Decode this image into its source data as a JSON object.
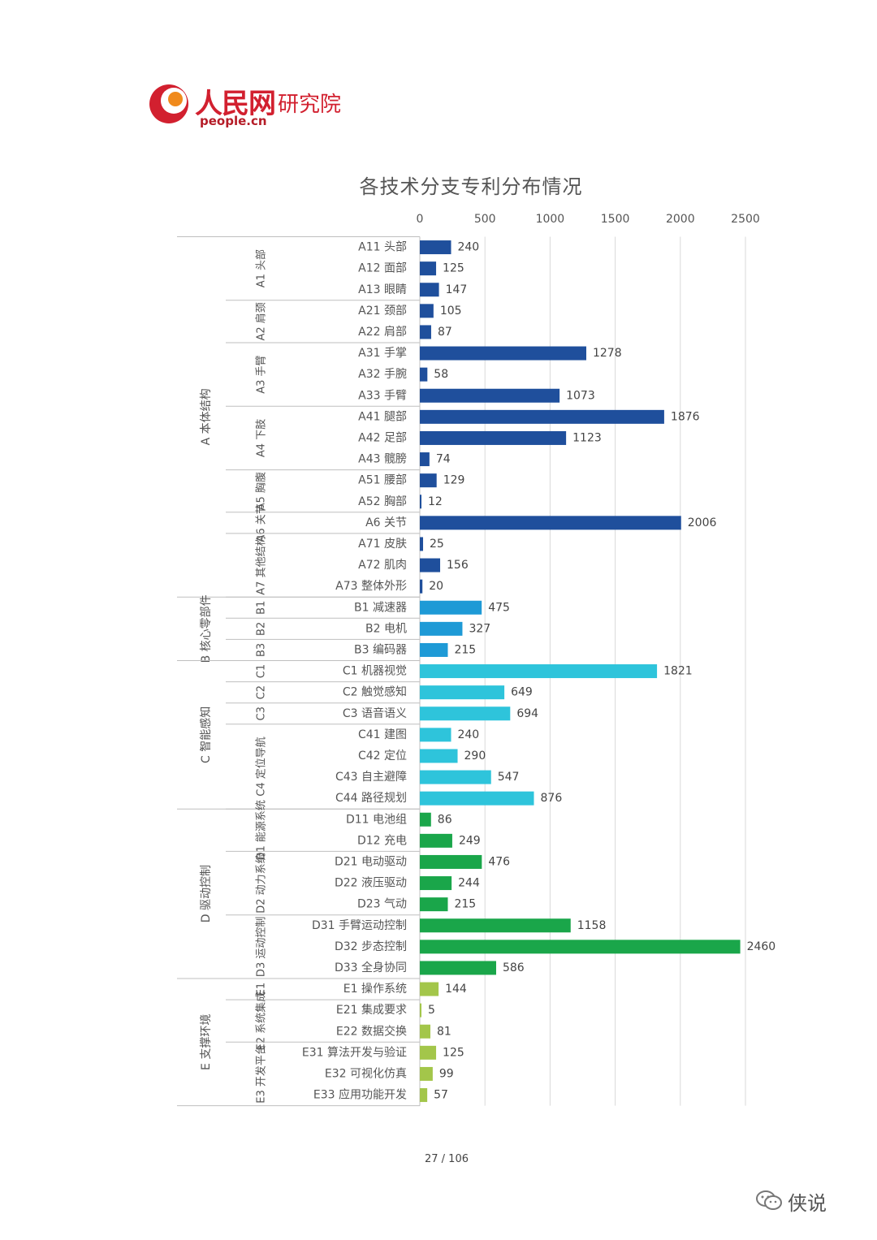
{
  "header": {
    "logo_text": "人民网",
    "logo_suffix": "研究院",
    "logo_url": "people.cn"
  },
  "footer": {
    "page_number": "27  /  106",
    "watermark": "侠说"
  },
  "colors": {
    "A": "#1f4f9c",
    "B": "#1e9ad6",
    "C": "#2ec4db",
    "D": "#1aa64a",
    "E": "#a3c64a",
    "brand": "#d2202f"
  },
  "chart_data": {
    "type": "bar",
    "orientation": "horizontal",
    "title": "各技术分支专利分布情况",
    "xlim": [
      0,
      2500
    ],
    "xticks": [
      0,
      500,
      1000,
      1500,
      2000,
      2500
    ],
    "grid": true,
    "categories": [
      "A11 头部",
      "A12 面部",
      "A13 眼睛",
      "A21 颈部",
      "A22 肩部",
      "A31 手掌",
      "A32 手腕",
      "A33 手臂",
      "A41 腿部",
      "A42 足部",
      "A43 髋膀",
      "A51 腰部",
      "A52 胸部",
      "A6 关节",
      "A71 皮肤",
      "A72 肌肉",
      "A73 整体外形",
      "B1 减速器",
      "B2 电机",
      "B3 编码器",
      "C1 机器视觉",
      "C2 触觉感知",
      "C3 语音语义",
      "C41 建图",
      "C42 定位",
      "C43 自主避障",
      "C44 路径规划",
      "D11 电池组",
      "D12 充电",
      "D21 电动驱动",
      "D22 液压驱动",
      "D23 气动",
      "D31 手臂运动控制",
      "D32 步态控制",
      "D33 全身协同",
      "E1 操作系统",
      "E21 集成要求",
      "E22 数据交换",
      "E31 算法开发与验证",
      "E32 可视化仿真",
      "E33 应用功能开发"
    ],
    "values": [
      240,
      125,
      147,
      105,
      87,
      1278,
      58,
      1073,
      1876,
      1123,
      74,
      129,
      12,
      2006,
      25,
      156,
      20,
      475,
      327,
      215,
      1821,
      649,
      694,
      240,
      290,
      547,
      876,
      86,
      249,
      476,
      244,
      215,
      1158,
      2460,
      586,
      144,
      5,
      81,
      125,
      99,
      57
    ],
    "groups": [
      {
        "key": "A",
        "label": "A 本体结构",
        "start": 0,
        "end": 16
      },
      {
        "key": "B",
        "label": "B 核心零部件",
        "start": 17,
        "end": 19
      },
      {
        "key": "C",
        "label": "C 智能感知",
        "start": 20,
        "end": 26
      },
      {
        "key": "D",
        "label": "D 驱动控制",
        "start": 27,
        "end": 34
      },
      {
        "key": "E",
        "label": "E 支撑环境",
        "start": 35,
        "end": 40
      }
    ],
    "subgroups": [
      {
        "label": "A1 头部",
        "start": 0,
        "end": 2
      },
      {
        "label": "A2 肩颈",
        "start": 3,
        "end": 4
      },
      {
        "label": "A3 手臂",
        "start": 5,
        "end": 7
      },
      {
        "label": "A4 下肢",
        "start": 8,
        "end": 10
      },
      {
        "label": "A5 胸腹",
        "start": 11,
        "end": 12
      },
      {
        "label": "A6 关节",
        "start": 13,
        "end": 13
      },
      {
        "label": "A7 其他结构",
        "start": 14,
        "end": 16
      },
      {
        "label": "B1",
        "start": 17,
        "end": 17
      },
      {
        "label": "B2",
        "start": 18,
        "end": 18
      },
      {
        "label": "B3",
        "start": 19,
        "end": 19
      },
      {
        "label": "C1",
        "start": 20,
        "end": 20
      },
      {
        "label": "C2",
        "start": 21,
        "end": 21
      },
      {
        "label": "C3",
        "start": 22,
        "end": 22
      },
      {
        "label": "C4 定位导航",
        "start": 23,
        "end": 26
      },
      {
        "label": "D1 能源系统",
        "start": 27,
        "end": 28
      },
      {
        "label": "D2 动力系统",
        "start": 29,
        "end": 31
      },
      {
        "label": "D3 运动控制",
        "start": 32,
        "end": 34
      },
      {
        "label": "E1",
        "start": 35,
        "end": 35
      },
      {
        "label": "E2 系统集成",
        "start": 36,
        "end": 37
      },
      {
        "label": "E3 开发平台",
        "start": 38,
        "end": 40
      }
    ]
  }
}
